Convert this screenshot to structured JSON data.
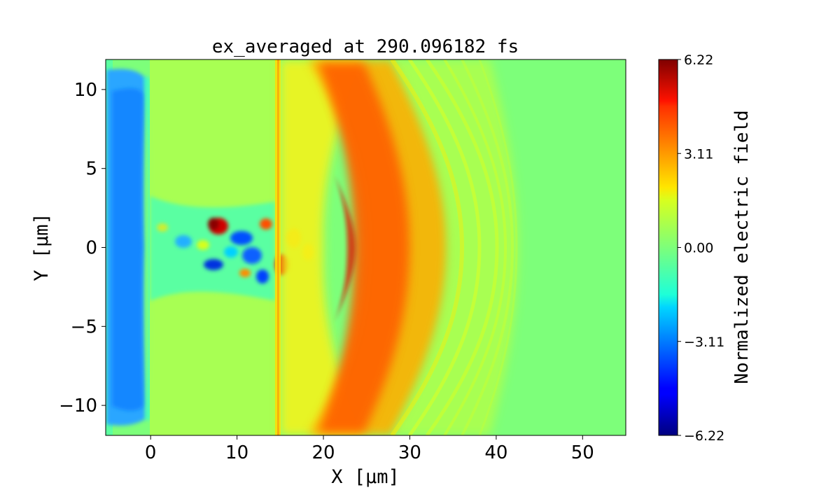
{
  "chart_data": {
    "type": "heatmap",
    "title": "ex_averaged at 290.096182 fs",
    "xlabel": "X [μm]",
    "ylabel": "Y [μm]",
    "xlim": [
      -5.2,
      55
    ],
    "ylim": [
      -11.9,
      11.9
    ],
    "x_ticks": [
      0,
      10,
      20,
      30,
      40,
      50
    ],
    "y_ticks": [
      -10,
      -5,
      0,
      5,
      10
    ],
    "x_tick_labels": [
      "0",
      "10",
      "20",
      "30",
      "40",
      "50"
    ],
    "y_tick_labels": [
      "−10",
      "−5",
      "0",
      "5",
      "10"
    ],
    "colormap": "jet",
    "colorbar": {
      "label": "Normalized electric field",
      "min": -6.22,
      "max": 6.22,
      "ticks": [
        -6.22,
        -3.11,
        0.0,
        3.11,
        6.22
      ],
      "tick_labels": [
        "−6.22",
        "−3.11",
        "0.00",
        "3.11",
        "6.22"
      ],
      "levels": 40
    },
    "features": [
      {
        "name": "negative field sheath",
        "x_range": [
          -4.5,
          0
        ],
        "y_range": [
          -11,
          11
        ],
        "approx_value": -2.5
      },
      {
        "name": "target plasma region",
        "x_range": [
          0,
          15
        ],
        "y_range": [
          -11,
          11
        ],
        "approx_value": 0.3
      },
      {
        "name": "turbulent central channel",
        "x_range": [
          2,
          15
        ],
        "y_range": [
          -3,
          3
        ],
        "approx_value_range": [
          -5,
          6
        ]
      },
      {
        "name": "arc-shaped positive wavefront",
        "x_range": [
          17,
          27
        ],
        "y_range": [
          -11,
          11
        ],
        "approx_value": 4.5
      },
      {
        "name": "weak trailing ripples",
        "x_range": [
          27,
          42
        ],
        "y_range": [
          -11,
          11
        ],
        "approx_value": 1.0
      },
      {
        "name": "unperturbed region",
        "x_range": [
          42,
          55
        ],
        "y_range": [
          -11.9,
          11.9
        ],
        "approx_value": 0.0
      }
    ]
  }
}
